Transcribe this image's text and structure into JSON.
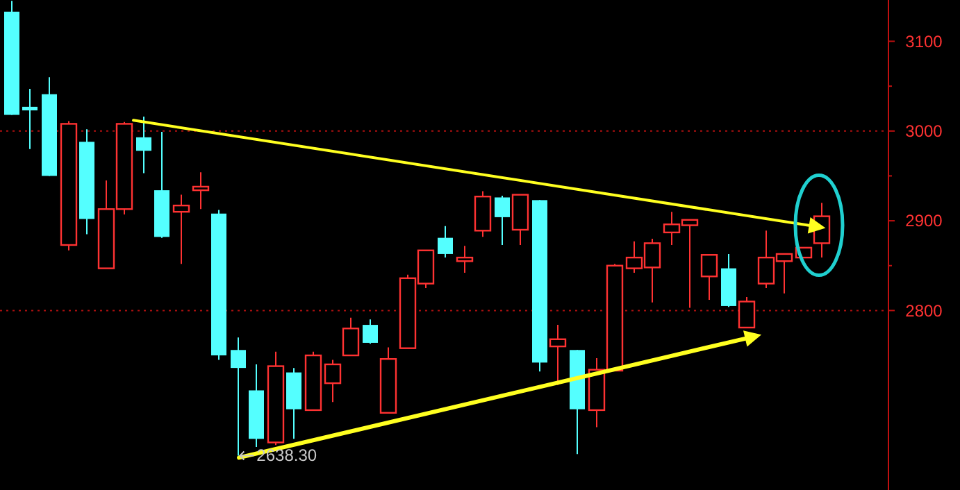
{
  "chart_data": {
    "type": "candlestick",
    "categories": [
      null,
      null,
      null,
      null,
      null,
      null,
      null,
      null,
      null,
      null,
      null,
      null,
      null,
      null,
      null,
      null,
      null,
      null,
      null,
      null,
      null,
      null,
      null,
      null,
      null,
      null,
      null,
      null,
      null,
      null,
      null,
      null,
      null,
      null,
      null,
      null,
      null,
      null,
      null,
      null,
      null,
      null,
      null,
      null,
      null,
      null,
      null
    ],
    "ohlc": [
      [
        3133,
        3145,
        3018,
        3018
      ],
      [
        3027,
        3047,
        2980,
        3023
      ],
      [
        3041,
        3060,
        2950,
        2950
      ],
      [
        2873,
        3011,
        2867,
        3008
      ],
      [
        2988,
        3002,
        2885,
        2902
      ],
      [
        2847,
        2945,
        2847,
        2913
      ],
      [
        2913,
        3010,
        2907,
        3008
      ],
      [
        2993,
        3016,
        2953,
        2978
      ],
      [
        2934,
        2999,
        2881,
        2882
      ],
      [
        2910,
        2929,
        2852,
        2917
      ],
      [
        2934,
        2954,
        2913,
        2938
      ],
      [
        2908,
        2912,
        2745,
        2750
      ],
      [
        2756,
        2770,
        2638.3,
        2736
      ],
      [
        2711,
        2740,
        2648,
        2657
      ],
      [
        2653,
        2754,
        2650,
        2738
      ],
      [
        2731,
        2736,
        2657,
        2690
      ],
      [
        2689,
        2754,
        2689,
        2750
      ],
      [
        2719,
        2745,
        2698,
        2740
      ],
      [
        2750,
        2792,
        2750,
        2780
      ],
      [
        2784,
        2790,
        2763,
        2764
      ],
      [
        2686,
        2759,
        2685,
        2746
      ],
      [
        2758,
        2840,
        2758,
        2836
      ],
      [
        2830,
        2867,
        2825,
        2867
      ],
      [
        2881,
        2894,
        2859,
        2863
      ],
      [
        2855,
        2872,
        2842,
        2859
      ],
      [
        2889,
        2933,
        2882,
        2927
      ],
      [
        2926,
        2928,
        2873,
        2904
      ],
      [
        2890,
        2929,
        2873,
        2929
      ],
      [
        2923,
        2923,
        2732,
        2742
      ],
      [
        2760,
        2784,
        2717,
        2768
      ],
      [
        2756,
        2756,
        2640,
        2690
      ],
      [
        2689,
        2747,
        2670,
        2734
      ],
      [
        2733,
        2852,
        2733,
        2850
      ],
      [
        2847,
        2877,
        2842,
        2859
      ],
      [
        2848,
        2880,
        2809,
        2875
      ],
      [
        2887,
        2910,
        2873,
        2896
      ],
      [
        2895,
        2901,
        2803,
        2901
      ],
      [
        2838,
        2862,
        2812,
        2862
      ],
      [
        2847,
        2863,
        2804,
        2805
      ],
      [
        2781,
        2815,
        2781,
        2810
      ],
      [
        2830,
        2889,
        2825,
        2859
      ],
      [
        2855,
        2863,
        2819,
        2863
      ],
      [
        2859,
        2870,
        2859,
        2870
      ],
      [
        2875,
        2920,
        2859,
        2905
      ],
      null,
      null,
      null
    ],
    "colors": [
      "#54ffff",
      "#54ffff",
      "#54ffff",
      "#ff3232",
      "#54ffff",
      "#ff3232",
      "#ff3232",
      "#54ffff",
      "#54ffff",
      "#ff3232",
      "#ff3232",
      "#54ffff",
      "#54ffff",
      "#54ffff",
      "#ff3232",
      "#54ffff",
      "#ff3232",
      "#ff3232",
      "#ff3232",
      "#54ffff",
      "#ff3232",
      "#ff3232",
      "#ff3232",
      "#54ffff",
      "#ff3232",
      "#ff3232",
      "#54ffff",
      "#ff3232",
      "#54ffff",
      "#ff3232",
      "#54ffff",
      "#ff3232",
      "#ff3232",
      "#ff3232",
      "#ff3232",
      "#ff3232",
      "#ff3232",
      "#ff3232",
      "#54ffff",
      "#ff3232",
      "#ff3232",
      "#ff3232",
      "#ff3232",
      "#ff3232",
      null,
      null,
      null
    ],
    "ylim": [
      2600,
      3146
    ],
    "yticks": [
      3100,
      {
        "value": 3050,
        "label": null
      },
      3000,
      {
        "value": 2950,
        "label": null
      },
      2900,
      {
        "value": 2850,
        "label": null
      },
      2800
    ],
    "ref_lines": [
      {
        "axis": "y",
        "value": 3000,
        "color": "#b01010",
        "line_style": "dotted"
      },
      {
        "axis": "y",
        "value": 2800,
        "color": "#b01010",
        "line_style": "dotted"
      }
    ],
    "annotations": [
      "2638.30"
    ]
  }
}
